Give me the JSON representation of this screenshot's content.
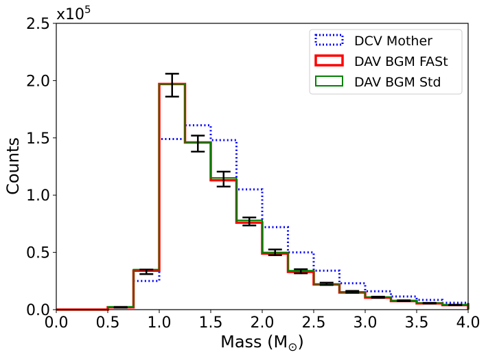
{
  "chart_data": {
    "type": "histogram",
    "xlabel": "Mass (M",
    "xlabel_subscript": "⊙",
    "xlabel_close": ")",
    "ylabel": "Counts",
    "y_multiplier_base": "x10",
    "y_multiplier_exp": "5",
    "xlim": [
      0,
      4
    ],
    "ylim": [
      0,
      2.5
    ],
    "x_ticks": [
      "0.0",
      "0.5",
      "1.0",
      "1.5",
      "2.0",
      "2.5",
      "3.0",
      "3.5",
      "4.0"
    ],
    "y_ticks": [
      "0.0",
      "0.5",
      "1.0",
      "1.5",
      "2.0",
      "2.5"
    ],
    "grid": false,
    "legend_position": "top-right",
    "bin_edges": [
      0,
      0.25,
      0.5,
      0.75,
      1.0,
      1.25,
      1.5,
      1.75,
      2.0,
      2.25,
      2.5,
      2.75,
      3.0,
      3.25,
      3.5,
      3.75,
      4.0
    ],
    "series": [
      {
        "name": "DCV Mother",
        "color": "#0000ff",
        "style": "dotted",
        "values": [
          0,
          0,
          0.02,
          0.25,
          1.49,
          1.61,
          1.48,
          1.05,
          0.72,
          0.5,
          0.34,
          0.23,
          0.16,
          0.115,
          0.085,
          0.06
        ]
      },
      {
        "name": "DAV BGM FASt",
        "color": "#ff0000",
        "style": "solid",
        "values": [
          0,
          0,
          0.02,
          0.34,
          1.97,
          1.46,
          1.13,
          0.76,
          0.49,
          0.33,
          0.22,
          0.15,
          0.105,
          0.075,
          0.055,
          0.04
        ]
      },
      {
        "name": "DAV BGM Std",
        "color": "#008000",
        "style": "solid",
        "values": [
          0,
          0,
          0.025,
          0.35,
          1.97,
          1.46,
          1.15,
          0.78,
          0.5,
          0.34,
          0.225,
          0.155,
          0.11,
          0.08,
          0.058,
          0.042
        ]
      }
    ],
    "error_bars": [
      {
        "x": 0.625,
        "y": 0.02,
        "err": 0.003
      },
      {
        "x": 0.875,
        "y": 0.33,
        "err": 0.02
      },
      {
        "x": 1.125,
        "y": 1.96,
        "err": 0.1
      },
      {
        "x": 1.375,
        "y": 1.45,
        "err": 0.07
      },
      {
        "x": 1.625,
        "y": 1.14,
        "err": 0.065
      },
      {
        "x": 1.875,
        "y": 0.77,
        "err": 0.035
      },
      {
        "x": 2.125,
        "y": 0.5,
        "err": 0.025
      },
      {
        "x": 2.375,
        "y": 0.335,
        "err": 0.018
      },
      {
        "x": 2.625,
        "y": 0.225,
        "err": 0.01
      },
      {
        "x": 2.875,
        "y": 0.155,
        "err": 0.008
      },
      {
        "x": 3.125,
        "y": 0.108,
        "err": 0.005
      },
      {
        "x": 3.375,
        "y": 0.078,
        "err": 0.004
      },
      {
        "x": 3.625,
        "y": 0.056,
        "err": 0.003
      },
      {
        "x": 3.875,
        "y": 0.041,
        "err": 0.002
      }
    ]
  }
}
